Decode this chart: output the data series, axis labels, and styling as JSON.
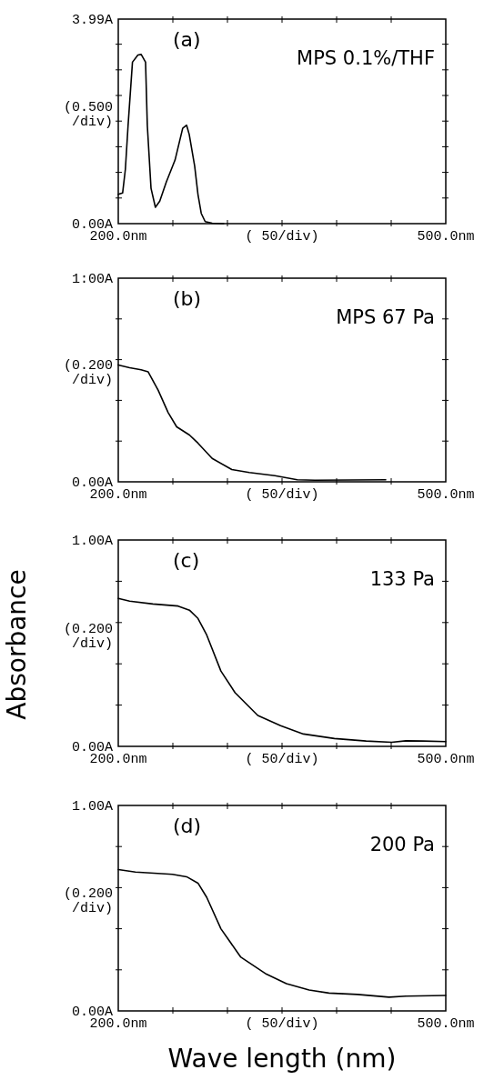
{
  "chart_data": [
    {
      "type": "line",
      "title": "(a)",
      "subtitle": "MPS 0.1%/THF",
      "xlabel": "( 50/div)",
      "ylabel": "(0.500 /div)",
      "xlim": [
        200,
        500
      ],
      "ylim": [
        0,
        3.99
      ],
      "xticks": [
        {
          "value": 200,
          "label": "200.0nm"
        },
        {
          "value": 250,
          "label": null
        },
        {
          "value": 300,
          "label": null
        },
        {
          "value": 350,
          "label": null
        },
        {
          "value": 400,
          "label": null
        },
        {
          "value": 450,
          "label": null
        },
        {
          "value": 500,
          "label": "500.0nm"
        }
      ],
      "yticks": [
        {
          "value": 0,
          "label": "0.00A"
        },
        {
          "value": 0.5,
          "label": null
        },
        {
          "value": 1,
          "label": null
        },
        {
          "value": 1.5,
          "label": null
        },
        {
          "value": 2,
          "label": null
        },
        {
          "value": 2.5,
          "label": null
        },
        {
          "value": 3,
          "label": null
        },
        {
          "value": 3.5,
          "label": null
        },
        {
          "value": 3.99,
          "label": "3.99A"
        }
      ],
      "series": [
        {
          "color": "#000000",
          "x": [
            200,
            204,
            206.5,
            209,
            213,
            218,
            221,
            225,
            226.6,
            230,
            234,
            238,
            244,
            252,
            259,
            262.6,
            265,
            270,
            273,
            276,
            279.6,
            286,
            296.5
          ],
          "values": [
            0.57,
            0.6,
            1.06,
            1.92,
            3.15,
            3.29,
            3.3,
            3.15,
            1.92,
            0.69,
            0.32,
            0.44,
            0.81,
            1.24,
            1.86,
            1.92,
            1.74,
            1.12,
            0.57,
            0.2,
            0.04,
            0.01,
            0
          ]
        }
      ]
    },
    {
      "type": "line",
      "title": "(b)",
      "subtitle": "MPS 67 Pa",
      "xlabel": "( 50/div)",
      "ylabel": "(0.200 /div)",
      "xlim": [
        200,
        500
      ],
      "ylim": [
        0,
        1
      ],
      "xticks": [
        {
          "value": 200,
          "label": "200.0nm"
        },
        {
          "value": 250,
          "label": null
        },
        {
          "value": 300,
          "label": null
        },
        {
          "value": 350,
          "label": null
        },
        {
          "value": 400,
          "label": null
        },
        {
          "value": 450,
          "label": null
        },
        {
          "value": 500,
          "label": "500.0nm"
        }
      ],
      "yticks": [
        {
          "value": 0,
          "label": "0.00A"
        },
        {
          "value": 0.2,
          "label": null
        },
        {
          "value": 0.4,
          "label": null
        },
        {
          "value": 0.6,
          "label": null
        },
        {
          "value": 0.8,
          "label": null
        },
        {
          "value": 1,
          "label": "1:00A"
        }
      ],
      "series": [
        {
          "color": "#000000",
          "x": [
            200,
            210.4,
            220.9,
            227.4,
            236.5,
            245.7,
            253.5,
            265.2,
            273,
            286,
            304,
            320,
            343.5,
            364,
            380,
            445
          ],
          "values": [
            0.574,
            0.56,
            0.55,
            0.54,
            0.45,
            0.34,
            0.27,
            0.23,
            0.19,
            0.115,
            0.06,
            0.046,
            0.03,
            0.01,
            0.008,
            0.01
          ]
        }
      ]
    },
    {
      "type": "line",
      "title": "(c)",
      "subtitle": "133 Pa",
      "xlabel": "( 50/div)",
      "ylabel": "(0.200 /div)",
      "annotations": [
        "Absorbance"
      ],
      "xlim": [
        200,
        500
      ],
      "ylim": [
        0,
        1
      ],
      "xticks": [
        {
          "value": 200,
          "label": "200.0nm"
        },
        {
          "value": 250,
          "label": null
        },
        {
          "value": 300,
          "label": null
        },
        {
          "value": 350,
          "label": null
        },
        {
          "value": 400,
          "label": null
        },
        {
          "value": 450,
          "label": null
        },
        {
          "value": 500,
          "label": "500.0nm"
        }
      ],
      "yticks": [
        {
          "value": 0,
          "label": "0.00A"
        },
        {
          "value": 0.2,
          "label": null
        },
        {
          "value": 0.4,
          "label": null
        },
        {
          "value": 0.6,
          "label": null
        },
        {
          "value": 0.8,
          "label": null
        },
        {
          "value": 1,
          "label": "1.00A"
        }
      ],
      "series": [
        {
          "color": "#000000",
          "x": [
            200,
            210.4,
            231.7,
            254.8,
            265.2,
            273,
            281,
            294,
            307,
            327.8,
            348.7,
            369.6,
            398,
            427,
            450.4,
            463.5,
            479,
            500
          ],
          "values": [
            0.717,
            0.704,
            0.69,
            0.68,
            0.66,
            0.62,
            0.54,
            0.365,
            0.26,
            0.15,
            0.1,
            0.06,
            0.038,
            0.026,
            0.02,
            0.027,
            0.026,
            0.023
          ]
        }
      ]
    },
    {
      "type": "line",
      "title": "(d)",
      "subtitle": "200 Pa",
      "xlabel": "( 50/div)",
      "ylabel": "(0.200 /div)",
      "annotations": [
        "Wave length (nm)"
      ],
      "xlim": [
        200,
        500
      ],
      "ylim": [
        0,
        1
      ],
      "xticks": [
        {
          "value": 200,
          "label": "200.0nm"
        },
        {
          "value": 250,
          "label": null
        },
        {
          "value": 300,
          "label": null
        },
        {
          "value": 350,
          "label": null
        },
        {
          "value": 400,
          "label": null
        },
        {
          "value": 450,
          "label": null
        },
        {
          "value": 500,
          "label": "500.0nm"
        }
      ],
      "yticks": [
        {
          "value": 0,
          "label": "0.00A"
        },
        {
          "value": 0.2,
          "label": null
        },
        {
          "value": 0.4,
          "label": null
        },
        {
          "value": 0.6,
          "label": null
        },
        {
          "value": 0.8,
          "label": null
        },
        {
          "value": 1,
          "label": "1.00A"
        }
      ],
      "series": [
        {
          "color": "#000000",
          "x": [
            200,
            215.7,
            249.6,
            262.6,
            273,
            281,
            294,
            312,
            335.7,
            354,
            374.8,
            393,
            419,
            448,
            463.5,
            500
          ],
          "values": [
            0.688,
            0.676,
            0.665,
            0.653,
            0.622,
            0.553,
            0.4,
            0.263,
            0.179,
            0.133,
            0.102,
            0.087,
            0.08,
            0.067,
            0.072,
            0.075
          ]
        }
      ]
    }
  ]
}
